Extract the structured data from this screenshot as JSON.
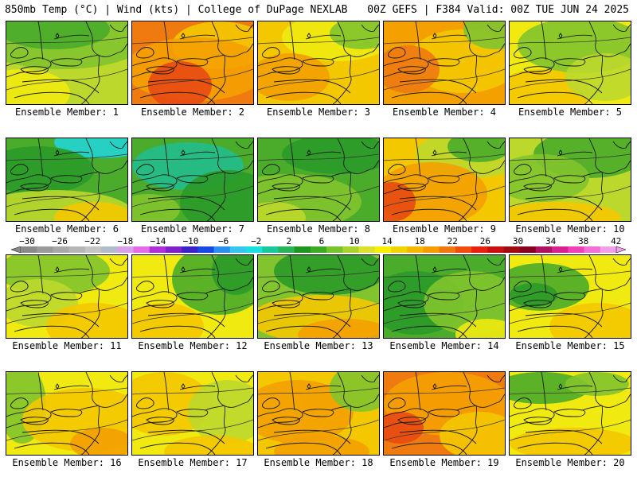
{
  "header": {
    "left_title": "850mb Temp (°C) | Wind (kts) | College of DuPage NEXLAB",
    "right_title": "00Z GEFS | F384 Valid: 00Z TUE JUN 24 2025"
  },
  "colorbar": {
    "tick_labels": [
      "−30",
      "−26",
      "−22",
      "−18",
      "−14",
      "−10",
      "−6",
      "−2",
      "2",
      "6",
      "10",
      "14",
      "18",
      "22",
      "26",
      "30",
      "34",
      "38",
      "42"
    ],
    "colors": [
      "#8a8a8a",
      "#9a9a9a",
      "#a8a8a8",
      "#b6b6b6",
      "#c4c4c4",
      "#b0bccb",
      "#d9a0e8",
      "#e36ce8",
      "#b030d8",
      "#7f20c8",
      "#3c23c8",
      "#1a48e0",
      "#2d8ef0",
      "#35c6f0",
      "#18e0dc",
      "#18c89a",
      "#2ab45a",
      "#1f9620",
      "#3cac26",
      "#74c42a",
      "#a8d22c",
      "#dce22c",
      "#f8f000",
      "#f0d400",
      "#f5b800",
      "#f59c00",
      "#f07810",
      "#f04c10",
      "#e82010",
      "#c81010",
      "#a00d10",
      "#880020",
      "#b01060",
      "#d82090",
      "#f040b8",
      "#f070d8",
      "#f0a0e8"
    ]
  },
  "palette": {
    "dark_green": "#2a9a28",
    "green": "#4aac2a",
    "lt_green": "#82c42e",
    "yellow_green": "#bcd82c",
    "yellow": "#f0ea10",
    "gold": "#f4c800",
    "orange": "#f4a000",
    "dk_orange": "#ef7a10",
    "red": "#e84a12",
    "cyan": "#22d4d4",
    "teal": "#22bc8c"
  },
  "panels": [
    {
      "caption": "Ensemble Member: 1"
    },
    {
      "caption": "Ensemble Member: 2"
    },
    {
      "caption": "Ensemble Member: 3"
    },
    {
      "caption": "Ensemble Member: 4"
    },
    {
      "caption": "Ensemble Member: 5"
    },
    {
      "caption": "Ensemble Member: 6"
    },
    {
      "caption": "Ensemble Member: 7"
    },
    {
      "caption": "Ensemble Member: 8"
    },
    {
      "caption": "Ensemble Member: 9"
    },
    {
      "caption": "Ensemble Member: 10"
    },
    {
      "caption": "Ensemble Member: 11"
    },
    {
      "caption": "Ensemble Member: 12"
    },
    {
      "caption": "Ensemble Member: 13"
    },
    {
      "caption": "Ensemble Member: 14"
    },
    {
      "caption": "Ensemble Member: 15"
    },
    {
      "caption": "Ensemble Member: 16"
    },
    {
      "caption": "Ensemble Member: 17"
    },
    {
      "caption": "Ensemble Member: 18"
    },
    {
      "caption": "Ensemble Member: 19"
    },
    {
      "caption": "Ensemble Member: 20"
    }
  ]
}
